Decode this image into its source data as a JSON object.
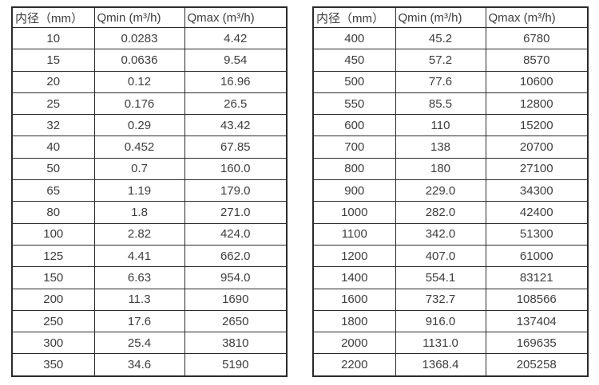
{
  "page": {
    "background_color": "#ffffff",
    "text_color": "#3d3d3d",
    "border_color": "#2b2b2b"
  },
  "tables": [
    {
      "name": "flow-spec-table-small-diameters",
      "headers": [
        "内径（mm）",
        "Qmin (m³/h)",
        "Qmax (m³/h)"
      ],
      "rows": [
        [
          "10",
          "0.0283",
          "4.42"
        ],
        [
          "15",
          "0.0636",
          "9.54"
        ],
        [
          "20",
          "0.12",
          "16.96"
        ],
        [
          "25",
          "0.176",
          "26.5"
        ],
        [
          "32",
          "0.29",
          "43.42"
        ],
        [
          "40",
          "0.452",
          "67.85"
        ],
        [
          "50",
          "0.7",
          "160.0"
        ],
        [
          "65",
          "1.19",
          "179.0"
        ],
        [
          "80",
          "1.8",
          "271.0"
        ],
        [
          "100",
          "2.82",
          "424.0"
        ],
        [
          "125",
          "4.41",
          "662.0"
        ],
        [
          "150",
          "6.63",
          "954.0"
        ],
        [
          "200",
          "11.3",
          "1690"
        ],
        [
          "250",
          "17.6",
          "2650"
        ],
        [
          "300",
          "25.4",
          "3810"
        ],
        [
          "350",
          "34.6",
          "5190"
        ]
      ]
    },
    {
      "name": "flow-spec-table-large-diameters",
      "headers": [
        "内径（mm）",
        "Qmin (m³/h)",
        "Qmax (m³/h)"
      ],
      "rows": [
        [
          "400",
          "45.2",
          "6780"
        ],
        [
          "450",
          "57.2",
          "8570"
        ],
        [
          "500",
          "77.6",
          "10600"
        ],
        [
          "550",
          "85.5",
          "12800"
        ],
        [
          "600",
          "110",
          "15200"
        ],
        [
          "700",
          "138",
          "20700"
        ],
        [
          "800",
          "180",
          "27100"
        ],
        [
          "900",
          "229.0",
          "34300"
        ],
        [
          "1000",
          "282.0",
          "42400"
        ],
        [
          "1100",
          "342.0",
          "51300"
        ],
        [
          "1200",
          "407.0",
          "61000"
        ],
        [
          "1400",
          "554.1",
          "83121"
        ],
        [
          "1600",
          "732.7",
          "108566"
        ],
        [
          "1800",
          "916.0",
          "137404"
        ],
        [
          "2000",
          "1131.0",
          "169635"
        ],
        [
          "2200",
          "1368.4",
          "205258"
        ]
      ]
    }
  ]
}
